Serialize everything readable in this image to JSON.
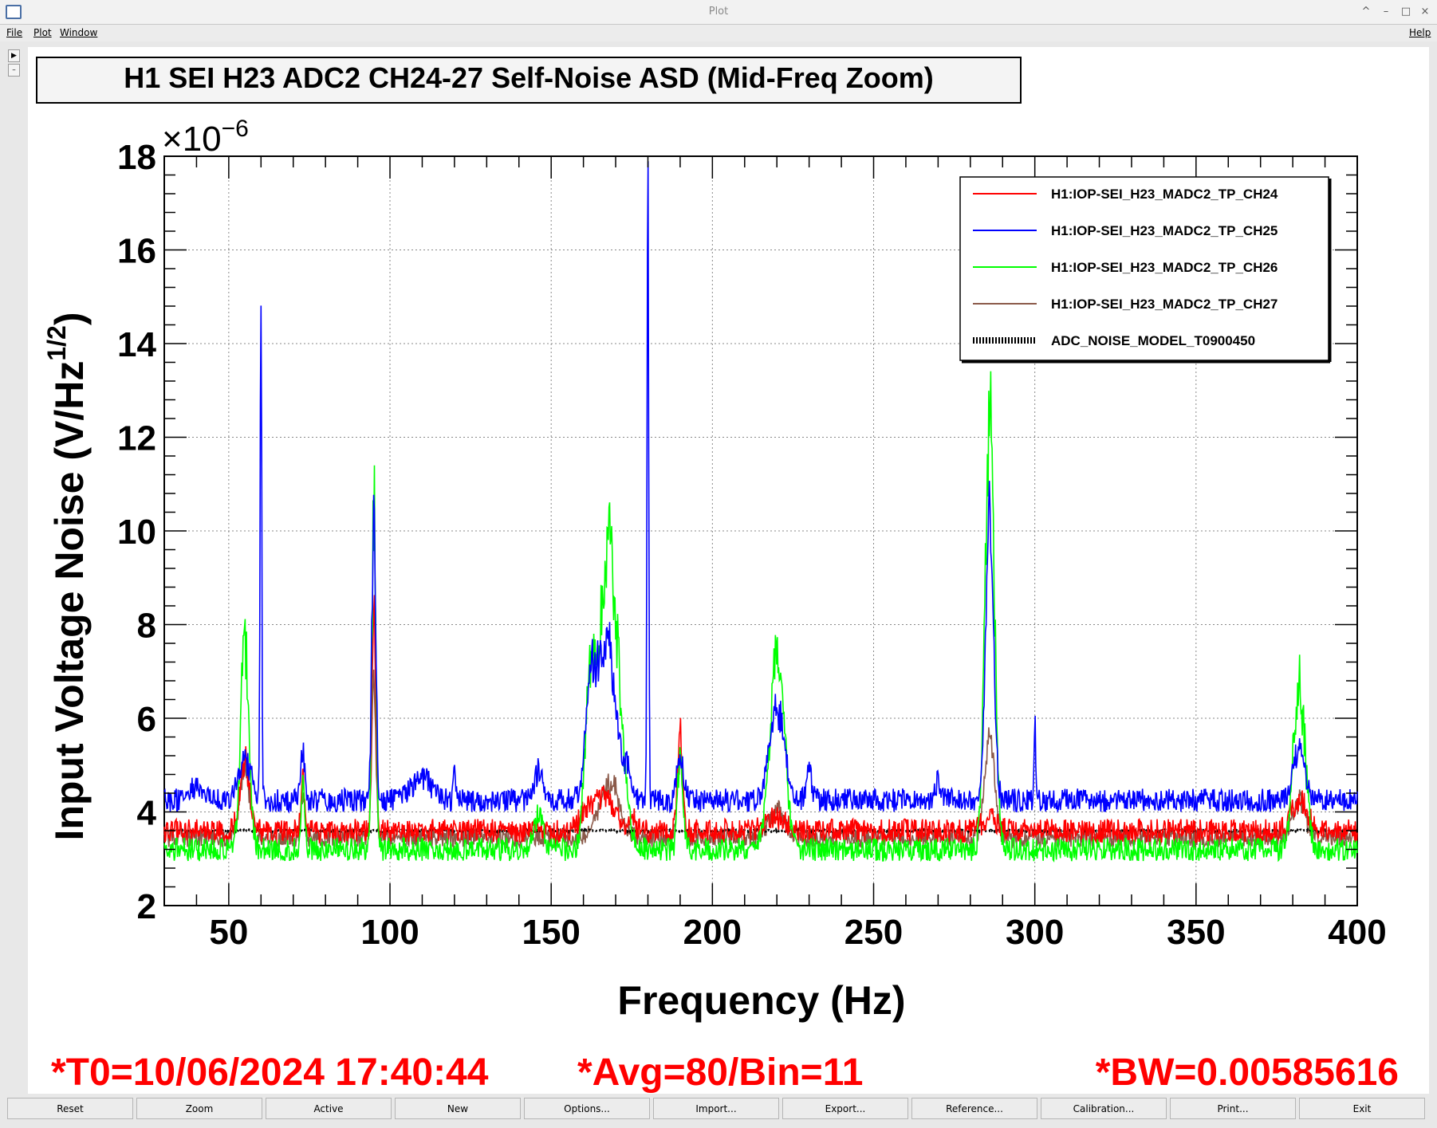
{
  "window": {
    "title": "Plot",
    "controls": [
      "^",
      "–",
      "□",
      "×"
    ]
  },
  "menu": {
    "file": "File",
    "plot": "Plot",
    "window": "Window",
    "help": "Help"
  },
  "plot": {
    "title": "H1 SEI H23 ADC2 CH24-27 Self-Noise ASD (Mid-Freq Zoom)",
    "y_multiplier": "×10",
    "y_exponent": "−6",
    "ylabel_main": "Input Voltage Noise (V/Hz",
    "ylabel_sup": "1/2",
    "ylabel_end": ")",
    "xlabel": "Frequency (Hz)",
    "status": {
      "t0": "*T0=10/06/2024 17:40:44",
      "avg": "*Avg=80/Bin=11",
      "bw": "*BW=0.00585616"
    }
  },
  "chart_data": {
    "type": "line",
    "xlabel": "Frequency (Hz)",
    "ylabel": "Input Voltage Noise (V/Hz^1/2)",
    "y_multiplier": "1e-6",
    "xlim": [
      30,
      400
    ],
    "ylim": [
      2,
      18
    ],
    "x_ticks": [
      50,
      100,
      150,
      200,
      250,
      300,
      350,
      400
    ],
    "y_ticks": [
      2,
      4,
      6,
      8,
      10,
      12,
      14,
      16,
      18
    ],
    "grid": true,
    "legend_position": "top-right",
    "series": [
      {
        "name": "H1:IOP-SEI_H23_MADC2_TP_CH24",
        "color": "#ff0000",
        "base": 3.6,
        "noise": 0.25,
        "peaks": [
          [
            55,
            1.5,
            1.5
          ],
          [
            73,
            1.2,
            0.6
          ],
          [
            95,
            4.4,
            0.6
          ],
          [
            165,
            0.8,
            4.0
          ],
          [
            175,
            0.4,
            0.8
          ],
          [
            190,
            2.1,
            0.8
          ],
          [
            220,
            0.3,
            3.0
          ],
          [
            286,
            0.3,
            2.0
          ],
          [
            382,
            0.7,
            2.5
          ]
        ]
      },
      {
        "name": "H1:IOP-SEI_H23_MADC2_TP_CH25",
        "color": "#0000ff",
        "base": 4.25,
        "noise": 0.25,
        "peaks": [
          [
            40,
            0.3,
            2.0
          ],
          [
            55,
            0.8,
            2.0
          ],
          [
            60,
            10.0,
            0.25
          ],
          [
            73,
            0.9,
            0.7
          ],
          [
            95,
            6.5,
            0.6
          ],
          [
            110,
            0.5,
            3.0
          ],
          [
            120,
            0.7,
            0.3
          ],
          [
            146,
            0.6,
            1.5
          ],
          [
            162,
            2.0,
            1.5
          ],
          [
            167,
            3.4,
            3.0
          ],
          [
            174,
            0.6,
            1.0
          ],
          [
            180,
            12.8,
            0.25
          ],
          [
            190,
            0.9,
            1.0
          ],
          [
            220,
            2.0,
            2.2
          ],
          [
            230,
            0.6,
            0.8
          ],
          [
            270,
            0.4,
            0.8
          ],
          [
            286,
            6.0,
            1.2
          ],
          [
            300,
            1.8,
            0.25
          ],
          [
            382,
            1.1,
            1.8
          ]
        ]
      },
      {
        "name": "H1:IOP-SEI_H23_MADC2_TP_CH26",
        "color": "#00ff00",
        "base": 3.2,
        "noise": 0.25,
        "peaks": [
          [
            55,
            4.3,
            1.3
          ],
          [
            73,
            1.3,
            0.6
          ],
          [
            95,
            7.7,
            0.6
          ],
          [
            146,
            0.7,
            1.5
          ],
          [
            162,
            3.2,
            1.5
          ],
          [
            168,
            6.5,
            3.0
          ],
          [
            190,
            2.0,
            0.8
          ],
          [
            220,
            4.3,
            2.2
          ],
          [
            286,
            9.5,
            1.4
          ],
          [
            382,
            3.5,
            1.8
          ]
        ]
      },
      {
        "name": "H1:IOP-SEI_H23_MADC2_TP_CH27",
        "color": "#8b5a4a",
        "base": 3.45,
        "noise": 0.2,
        "peaks": [
          [
            55,
            1.5,
            1.5
          ],
          [
            73,
            0.9,
            0.6
          ],
          [
            95,
            3.5,
            0.6
          ],
          [
            168,
            1.2,
            3.0
          ],
          [
            190,
            1.8,
            0.8
          ],
          [
            220,
            0.6,
            2.5
          ],
          [
            286,
            2.1,
            1.5
          ],
          [
            382,
            0.8,
            2.0
          ]
        ]
      },
      {
        "name": "ADC_NOISE_MODEL_T0900450",
        "color": "#000000",
        "style": "dotted",
        "base": 3.6,
        "noise": 0.02,
        "peaks": []
      }
    ]
  }
}
